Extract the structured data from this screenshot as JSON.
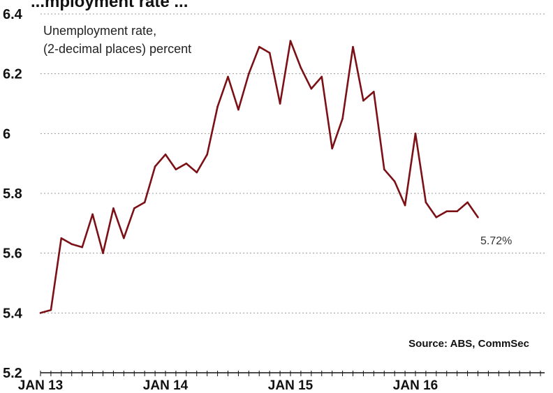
{
  "chart_data": {
    "type": "line",
    "title_fragment": "...mployment rate ...",
    "annotation_lines": [
      "Unemployment rate,",
      "(2-decimal places) percent"
    ],
    "source": "Source: ABS, CommSec",
    "last_value_label": "5.72%",
    "ylim": [
      5.2,
      6.4
    ],
    "yticks": [
      {
        "value": 6.4,
        "label": "6.4"
      },
      {
        "value": 6.2,
        "label": "6.2"
      },
      {
        "value": 6.0,
        "label": "6"
      },
      {
        "value": 5.8,
        "label": "5.8"
      },
      {
        "value": 5.6,
        "label": "5.6"
      },
      {
        "value": 5.4,
        "label": "5.4"
      },
      {
        "value": 5.2,
        "label": "5.2"
      }
    ],
    "xticks": [
      {
        "index": 0,
        "label": "JAN 13"
      },
      {
        "index": 12,
        "label": "JAN 14"
      },
      {
        "index": 24,
        "label": "JAN 15"
      },
      {
        "index": 36,
        "label": "JAN 16"
      }
    ],
    "x_count": 56,
    "grid": true,
    "line_color": "#7b1116",
    "series": [
      {
        "values": [
          5.4,
          5.41,
          5.65,
          5.63,
          5.62,
          5.73,
          5.6,
          5.75,
          5.65,
          5.75,
          5.77,
          5.89,
          5.93,
          5.88,
          5.9,
          5.87,
          5.93,
          6.09,
          6.19,
          6.08,
          6.2,
          6.29,
          6.27,
          6.1,
          6.31,
          6.22,
          6.15,
          6.19,
          5.95,
          6.05,
          6.29,
          6.11,
          6.14,
          5.88,
          5.84,
          5.76,
          6.0,
          5.77,
          5.72,
          5.74,
          5.74,
          5.77,
          5.72
        ]
      }
    ]
  }
}
